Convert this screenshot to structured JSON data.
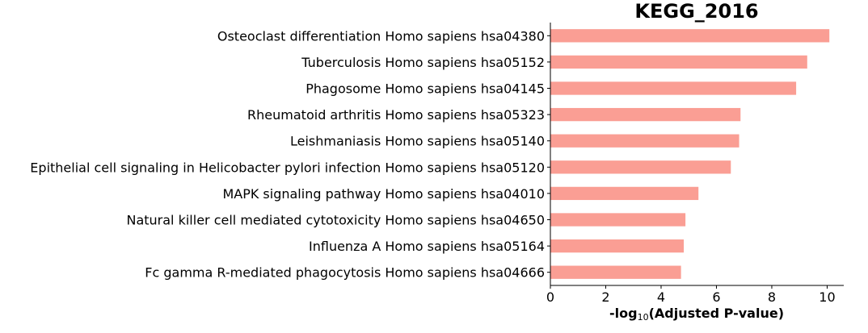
{
  "chart_data": {
    "type": "bar",
    "orientation": "horizontal",
    "title": "KEGG_2016",
    "xlabel": {
      "prefix": "-log",
      "subscript": "10",
      "suffix": "(Adjusted P-value)"
    },
    "xlim": [
      0,
      10.6
    ],
    "xticks": [
      "0",
      "2",
      "4",
      "6",
      "8",
      "10"
    ],
    "bar_color": "#fa9e94",
    "categories": [
      "Osteoclast differentiation Homo sapiens hsa04380",
      "Tuberculosis Homo sapiens hsa05152",
      "Phagosome Homo sapiens hsa04145",
      "Rheumatoid arthritis Homo sapiens hsa05323",
      "Leishmaniasis Homo sapiens hsa05140",
      "Epithelial cell signaling in Helicobacter pylori infection Homo sapiens hsa05120",
      "MAPK signaling pathway Homo sapiens hsa04010",
      "Natural killer cell mediated cytotoxicity Homo sapiens hsa04650",
      "Influenza A Homo sapiens hsa05164",
      "Fc gamma R-mediated phagocytosis Homo sapiens hsa04666"
    ],
    "values": [
      10.08,
      9.28,
      8.88,
      6.87,
      6.82,
      6.52,
      5.35,
      4.88,
      4.82,
      4.72
    ]
  }
}
